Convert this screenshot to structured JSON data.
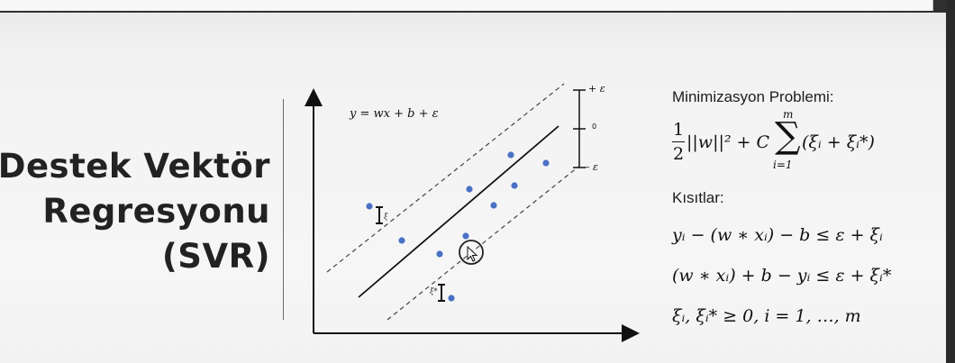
{
  "title": {
    "line1": "Destek Vektör",
    "line2": "Regresyonu",
    "line3": "(SVR)"
  },
  "diagram": {
    "equation": "y = wx + b + ε",
    "band_labels": {
      "upper": "+ ε",
      "center": "0",
      "lower": "– ε"
    },
    "slack_upper": "ξ",
    "slack_lower": "ξ*",
    "point_color": "#4a72c4"
  },
  "right_panel": {
    "problem_header": "Minimizasyon Problemi:",
    "objective": {
      "fraction_num": "1",
      "fraction_den": "2",
      "norm_term": "||w||² + C",
      "sum_top": "m",
      "sum_bottom": "i=1",
      "sum_body": "(ξᵢ + ξᵢ*)"
    },
    "constraints_header": "Kısıtlar:",
    "constraint_1": "yᵢ − (w ∗ xᵢ) − b ≤ ε + ξᵢ",
    "constraint_2": "(w ∗ xᵢ) + b − yᵢ ≤ ε + ξᵢ*",
    "constraint_3": "ξᵢ, ξᵢ*  ≥ 0,        i = 1, …, m"
  }
}
